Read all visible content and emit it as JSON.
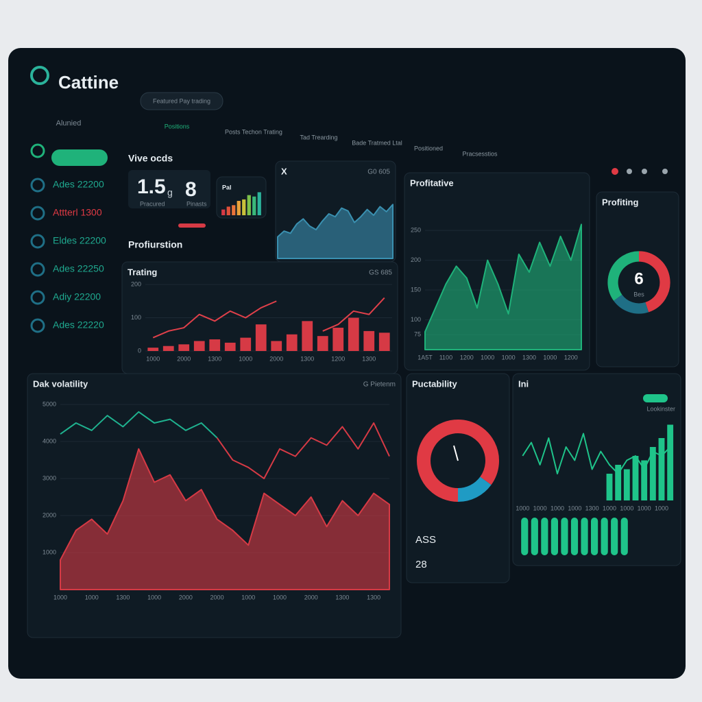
{
  "header": {
    "title": "Cattine",
    "search": "Featured Pay trading"
  },
  "sidebar": {
    "heading": "Alunied",
    "items": [
      "Ades 22200",
      "Attterl 1300",
      "Eldes 22200",
      "Ades 22250",
      "Adiy 22200",
      "Ades 22220"
    ]
  },
  "tabs": [
    "Positions",
    "Posts Techon Trating",
    "Tad Trearding",
    "Bade Tratmed Ltal",
    "Positioned",
    "Pracsesstios"
  ],
  "kpi": {
    "heading": "Vive ocds",
    "items": [
      {
        "value": "1.5",
        "unit": "g",
        "label": "Pracured"
      },
      {
        "value": "8",
        "label": "Pinasts"
      }
    ]
  },
  "section_label": "Profiurstion",
  "chart_data": [
    {
      "type": "bar",
      "title": "Pal",
      "ylim": [
        0,
        100
      ],
      "series": [
        {
          "colors": [
            "#d63a45",
            "#e0503a",
            "#e8733a",
            "#e8a13a",
            "#c9c23a",
            "#7dc24a",
            "#3ab87a",
            "#2bb39b"
          ],
          "values": [
            20,
            30,
            35,
            50,
            55,
            70,
            65,
            80
          ]
        }
      ]
    },
    {
      "type": "area",
      "title": "X",
      "subtitle": "G0 605",
      "ylim": [
        0,
        100
      ],
      "series": [
        {
          "color": "#3a90b0",
          "values": [
            30,
            38,
            35,
            48,
            55,
            45,
            40,
            52,
            62,
            58,
            70,
            66,
            50,
            58,
            68,
            60,
            72,
            65,
            75
          ]
        }
      ]
    },
    {
      "type": "bar",
      "title": "Trating",
      "subtitle": "GS 685",
      "ylim": [
        0,
        200
      ],
      "yticks": [
        0,
        100,
        200
      ],
      "grid": true,
      "categories": [
        "1000",
        null,
        "2000",
        null,
        "1300",
        null,
        "1000",
        null,
        "2000",
        null,
        "1300",
        null,
        "1200",
        null,
        "1300",
        null
      ],
      "series": [
        {
          "type": "bar",
          "color": "#d63a45",
          "values": [
            10,
            15,
            20,
            30,
            35,
            25,
            40,
            80,
            30,
            50,
            90,
            45,
            70,
            100,
            60,
            55
          ]
        },
        {
          "type": "line",
          "color": "#e0404a",
          "values": [
            40,
            60,
            70,
            110,
            90,
            120,
            100,
            130,
            150,
            null,
            null,
            60,
            80,
            120,
            110,
            160
          ]
        }
      ]
    },
    {
      "type": "area",
      "title": "Profitative",
      "ylim": [
        50,
        280
      ],
      "yticks": [
        75,
        100,
        150,
        200,
        250
      ],
      "grid": true,
      "categories": [
        "1A5T",
        null,
        "1100",
        null,
        "1200",
        null,
        "1000",
        null,
        "1000",
        null,
        "1300",
        null,
        "1000",
        null,
        "1200",
        null
      ],
      "series": [
        {
          "color": "#1fb27a",
          "values": [
            80,
            120,
            160,
            190,
            170,
            120,
            200,
            160,
            110,
            210,
            180,
            230,
            190,
            240,
            200,
            260
          ]
        }
      ]
    },
    {
      "type": "pie",
      "title": "Profiting",
      "center": "6",
      "center_label": "Bes",
      "values": [
        45,
        20,
        35
      ],
      "colors": [
        "#e03a44",
        "#1f6f86",
        "#1fb27a"
      ]
    },
    {
      "type": "line",
      "title": "Dak volatility",
      "subtitle": "G Pietenm",
      "ylim": [
        0,
        5000
      ],
      "yticks": [
        1000,
        2000,
        3000,
        4000,
        5000
      ],
      "grid": true,
      "categories": [
        "1000",
        null,
        "1000",
        null,
        "1300",
        null,
        "1000",
        null,
        "2000",
        null,
        "2000",
        null,
        "1000",
        null,
        "1000",
        null,
        "2000",
        null,
        "1300",
        null,
        "1300",
        null
      ],
      "series": [
        {
          "type": "area",
          "color": "#d63a45",
          "values": [
            800,
            1600,
            1900,
            1500,
            2400,
            3800,
            2900,
            3100,
            2400,
            2700,
            1900,
            1600,
            1200,
            2600,
            2300,
            2000,
            2500,
            1700,
            2400,
            2000,
            2600,
            2300
          ]
        },
        {
          "type": "line",
          "color": "#1fb28f",
          "values": [
            4200,
            4500,
            4300,
            4700,
            4400,
            4800,
            4500,
            4600,
            4300,
            4500,
            4100,
            null,
            null,
            null,
            null,
            null,
            null,
            null,
            null,
            null,
            null,
            null
          ]
        },
        {
          "type": "line",
          "color": "#d63a45",
          "values": [
            null,
            null,
            null,
            null,
            null,
            null,
            null,
            null,
            null,
            null,
            4100,
            3500,
            3300,
            3000,
            3800,
            3600,
            4100,
            3900,
            4400,
            3800,
            4500,
            3600
          ]
        }
      ]
    },
    {
      "type": "pie",
      "title": "Puctability",
      "footer_label": "ASS",
      "footer_value": "28",
      "values": [
        35,
        15,
        50
      ],
      "colors": [
        "#e03a44",
        "#1f9bc4",
        "#e03a44"
      ]
    },
    {
      "type": "line",
      "title": "Ini",
      "badge": "Lookinster",
      "ylim": [
        0,
        100
      ],
      "grid": true,
      "categories": [
        "1000",
        null,
        "1000",
        null,
        "1000",
        null,
        "1000",
        null,
        "1300",
        null,
        "1000",
        null,
        "1000",
        null,
        "1000",
        null,
        "1000",
        null
      ],
      "series": [
        {
          "type": "line",
          "color": "#1fc48a",
          "values": [
            50,
            65,
            40,
            70,
            30,
            60,
            45,
            75,
            35,
            55,
            40,
            30,
            45,
            50,
            35,
            55,
            50,
            60
          ]
        },
        {
          "type": "bar",
          "color": "#1fc48a",
          "values": [
            null,
            null,
            null,
            null,
            null,
            null,
            null,
            null,
            null,
            null,
            30,
            40,
            35,
            50,
            45,
            60,
            70,
            85
          ]
        }
      ]
    },
    {
      "type": "bar",
      "ylim": [
        0,
        1
      ],
      "series": [
        {
          "color": "#1fc48a",
          "values": [
            1,
            1,
            1,
            1,
            1,
            1,
            1,
            1,
            1,
            1,
            1
          ]
        }
      ]
    }
  ]
}
